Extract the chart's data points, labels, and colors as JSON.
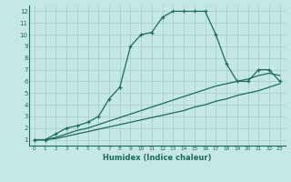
{
  "xlabel": "Humidex (Indice chaleur)",
  "background_color": "#c5e8e5",
  "grid_color": "#a8d0cc",
  "line_color": "#1a6b5a",
  "xlim": [
    -0.5,
    23.5
  ],
  "ylim": [
    0.5,
    12.5
  ],
  "xticks": [
    0,
    1,
    2,
    3,
    4,
    5,
    6,
    7,
    8,
    9,
    10,
    11,
    12,
    13,
    14,
    15,
    16,
    17,
    18,
    19,
    20,
    21,
    22,
    23
  ],
  "yticks": [
    1,
    2,
    3,
    4,
    5,
    6,
    7,
    8,
    9,
    10,
    11,
    12
  ],
  "line1_x": [
    0,
    1,
    2,
    3,
    4,
    5,
    6,
    7,
    8,
    9,
    10,
    11,
    12,
    13,
    14,
    15,
    16,
    17,
    18,
    19,
    20,
    21,
    22,
    23
  ],
  "line1_y": [
    1,
    1,
    1.5,
    2,
    2.2,
    2.5,
    3,
    4.5,
    5.5,
    9,
    10,
    10.2,
    11.5,
    12,
    12,
    12,
    12,
    10,
    7.5,
    6,
    6,
    7,
    7,
    6
  ],
  "line2_x": [
    0,
    1,
    2,
    3,
    4,
    5,
    6,
    7,
    8,
    9,
    10,
    11,
    12,
    13,
    14,
    15,
    16,
    17,
    18,
    19,
    20,
    21,
    22,
    23
  ],
  "line2_y": [
    1,
    1,
    1.2,
    1.5,
    1.8,
    2.0,
    2.3,
    2.6,
    2.9,
    3.2,
    3.5,
    3.8,
    4.1,
    4.4,
    4.7,
    5.0,
    5.3,
    5.6,
    5.8,
    6.0,
    6.2,
    6.5,
    6.7,
    6.5
  ],
  "line3_x": [
    0,
    1,
    2,
    3,
    4,
    5,
    6,
    7,
    8,
    9,
    10,
    11,
    12,
    13,
    14,
    15,
    16,
    17,
    18,
    19,
    20,
    21,
    22,
    23
  ],
  "line3_y": [
    1,
    1,
    1.1,
    1.3,
    1.5,
    1.7,
    1.9,
    2.1,
    2.3,
    2.5,
    2.7,
    2.9,
    3.1,
    3.3,
    3.5,
    3.8,
    4.0,
    4.3,
    4.5,
    4.8,
    5.0,
    5.2,
    5.5,
    5.8
  ]
}
